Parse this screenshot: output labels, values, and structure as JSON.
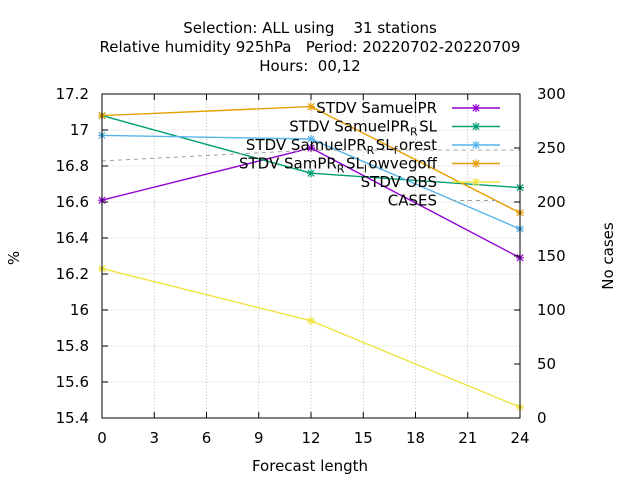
{
  "chart_data": {
    "type": "line",
    "title_lines": [
      "Selection: ALL using    31 stations",
      "Relative humidity 925hPa   Period: 20220702-20220709",
      "Hours:  00,12"
    ],
    "xlabel": "Forecast length",
    "ylabel": "%",
    "y2label": "No cases",
    "x": [
      0,
      12,
      24
    ],
    "xticks": [
      0,
      3,
      6,
      9,
      12,
      15,
      18,
      21,
      24
    ],
    "xlim": [
      0,
      24
    ],
    "ylim": [
      15.4,
      17.2
    ],
    "yticks": [
      15.4,
      15.6,
      15.8,
      16,
      16.2,
      16.4,
      16.6,
      16.8,
      17,
      17.2
    ],
    "y2lim": [
      0,
      300
    ],
    "y2ticks": [
      0,
      50,
      100,
      150,
      200,
      250,
      300
    ],
    "grid": true,
    "legend_position": "top-right",
    "series": [
      {
        "name": "STDV SamuelPR",
        "name_parts": [
          [
            "STDV SamuelPR",
            false
          ]
        ],
        "values": [
          16.61,
          16.9,
          16.29
        ],
        "color": "#9400d3",
        "axis": "y1",
        "dashed": false
      },
      {
        "name": "STDV SamuelPR_R SL",
        "name_parts": [
          [
            "STDV SamuelPR",
            false
          ],
          [
            "R",
            true
          ],
          [
            "SL",
            false
          ]
        ],
        "values": [
          17.08,
          16.76,
          16.68
        ],
        "color": "#009e73",
        "axis": "y1",
        "dashed": false
      },
      {
        "name": "STDV SamuelPR_R SL_f orest",
        "name_parts": [
          [
            "STDV SamuelPR",
            false
          ],
          [
            "R",
            true
          ],
          [
            "SL",
            false
          ],
          [
            "f",
            true
          ],
          [
            "orest",
            false
          ]
        ],
        "values": [
          16.97,
          16.95,
          16.45
        ],
        "color": "#56b4e9",
        "axis": "y1",
        "dashed": false
      },
      {
        "name": "STDV SamPR_R SL_l owvegoff",
        "name_parts": [
          [
            "STDV SamPR",
            false
          ],
          [
            "R",
            true
          ],
          [
            "SL",
            false
          ],
          [
            "l",
            true
          ],
          [
            "owvegoff",
            false
          ]
        ],
        "values": [
          17.08,
          17.13,
          16.54
        ],
        "color": "#e69f00",
        "axis": "y1",
        "dashed": false
      },
      {
        "name": "STDV OBS",
        "name_parts": [
          [
            "STDV OBS",
            false
          ]
        ],
        "values": [
          16.23,
          15.94,
          15.46
        ],
        "color": "#f0e442",
        "axis": "y1",
        "dashed": false
      },
      {
        "name": "CASES",
        "name_parts": [
          [
            "CASES",
            false
          ]
        ],
        "values": [
          238,
          248,
          248
        ],
        "color": "#a0a0a0",
        "axis": "y2",
        "dashed": true
      }
    ]
  }
}
